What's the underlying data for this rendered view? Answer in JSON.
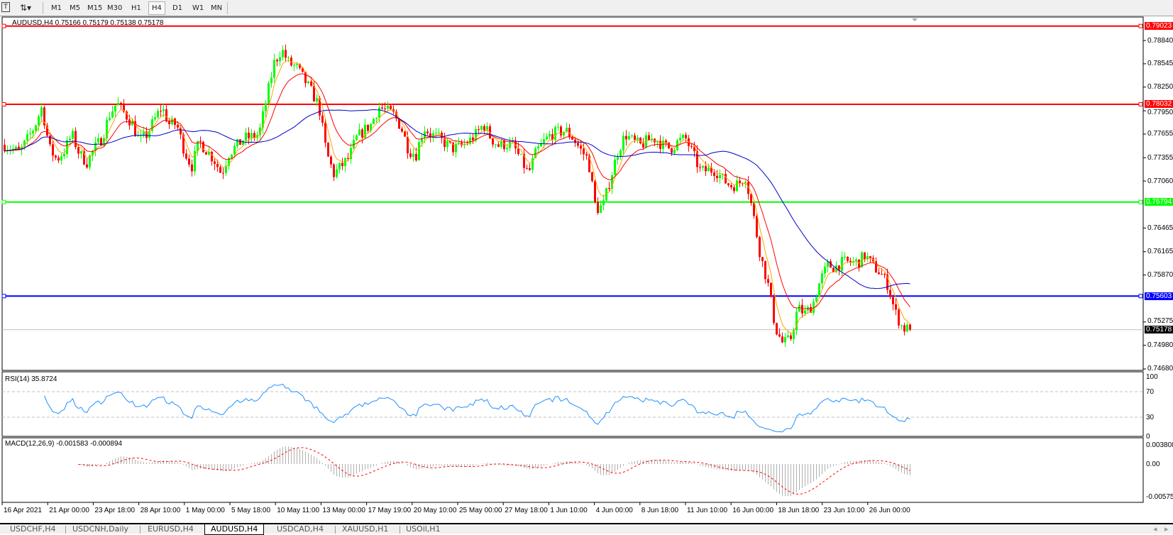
{
  "toolbar": {
    "timeframes": [
      "M1",
      "M5",
      "M15",
      "M30",
      "H1",
      "H4",
      "D1",
      "W1",
      "MN"
    ],
    "active": "H4"
  },
  "chart": {
    "title": "AUDUSD,H4  0.75166 0.75179 0.75138 0.75178",
    "price_ticks": [
      "0.78840",
      "0.78545",
      "0.78250",
      "0.77950",
      "0.77655",
      "0.77355",
      "0.77060",
      "0.76465",
      "0.76165",
      "0.75870",
      "0.75275",
      "0.74980",
      "0.74680"
    ],
    "levels": [
      {
        "price": 0.79023,
        "label": "0.79023",
        "color": "#ff0000"
      },
      {
        "price": 0.78032,
        "label": "0.78032",
        "color": "#ff0000"
      },
      {
        "price": 0.76794,
        "label": "0.76794",
        "color": "#00ff00"
      },
      {
        "price": 0.75603,
        "label": "0.75603",
        "color": "#0000ff"
      }
    ],
    "bid": {
      "price": 0.75178,
      "label": "0.75178"
    },
    "time_labels": [
      "16 Apr 2021",
      "21 Apr 00:00",
      "23 Apr 18:00",
      "28 Apr 10:00",
      "1 May 00:00",
      "5 May 18:00",
      "10 May 11:00",
      "13 May 00:00",
      "17 May 19:00",
      "20 May 10:00",
      "25 May 00:00",
      "27 May 18:00",
      "1 Jun 10:00",
      "4 Jun 00:00",
      "8 Jun 18:00",
      "11 Jun 10:00",
      "16 Jun 00:00",
      "18 Jun 18:00",
      "23 Jun 10:00",
      "26 Jun 00:00"
    ],
    "colors": {
      "bull": "#00ff00",
      "bear": "#ff0000",
      "ma_fast": "#ffa500",
      "ma_mid": "#ff0000",
      "ma_slow": "#0000cd"
    }
  },
  "rsi": {
    "label": "RSI(14) 35.8724",
    "ticks": [
      "100",
      "70",
      "30",
      "0"
    ],
    "color": "#1e90ff"
  },
  "macd": {
    "label": "MACD(12,26,9) -0.001583 -0.000894",
    "ticks": [
      "0.003808",
      "0.00",
      "-0.005757"
    ]
  },
  "tabs": [
    "USDCHF,H4",
    "USDCNH,Daily",
    "EURUSD,H4",
    "AUDUSD,H4",
    "USDCAD,H4",
    "XAUUSD,H1",
    "USOil,H1"
  ],
  "active_tab": "AUDUSD,H4",
  "chart_data": {
    "type": "candlestick",
    "symbol": "AUDUSD",
    "timeframe": "H4",
    "ylim": [
      0.7468,
      0.7902
    ],
    "approx_closes": [
      0.7752,
      0.7747,
      0.7742,
      0.7758,
      0.7775,
      0.78,
      0.7747,
      0.7733,
      0.7745,
      0.7765,
      0.774,
      0.773,
      0.7747,
      0.776,
      0.779,
      0.7805,
      0.7792,
      0.778,
      0.7756,
      0.7765,
      0.7783,
      0.78,
      0.7778,
      0.7778,
      0.7745,
      0.7724,
      0.7756,
      0.7745,
      0.7733,
      0.7715,
      0.7742,
      0.775,
      0.776,
      0.7762,
      0.7765,
      0.781,
      0.7855,
      0.7873,
      0.7855,
      0.785,
      0.7835,
      0.7819,
      0.7801,
      0.7742,
      0.7715,
      0.7725,
      0.7735,
      0.776,
      0.777,
      0.7778,
      0.78,
      0.7795,
      0.779,
      0.7774,
      0.7745,
      0.774,
      0.7774,
      0.7765,
      0.776,
      0.7753,
      0.7747,
      0.775,
      0.7756,
      0.7765,
      0.7778,
      0.776,
      0.7751,
      0.7753,
      0.775,
      0.7733,
      0.7715,
      0.7742,
      0.7755,
      0.7765,
      0.7768,
      0.777,
      0.776,
      0.7745,
      0.7733,
      0.767,
      0.7675,
      0.7711,
      0.7745,
      0.7765,
      0.7756,
      0.7751,
      0.7758,
      0.776,
      0.7751,
      0.7747,
      0.7756,
      0.776,
      0.774,
      0.7718,
      0.772,
      0.772,
      0.7708,
      0.77,
      0.7702,
      0.7712,
      0.7666,
      0.7612,
      0.7576,
      0.752,
      0.75,
      0.7505,
      0.7545,
      0.7538,
      0.755,
      0.758,
      0.7599,
      0.7597,
      0.7603,
      0.7603,
      0.7603,
      0.7612,
      0.7599,
      0.759,
      0.7575,
      0.754,
      0.752,
      0.7518
    ]
  }
}
